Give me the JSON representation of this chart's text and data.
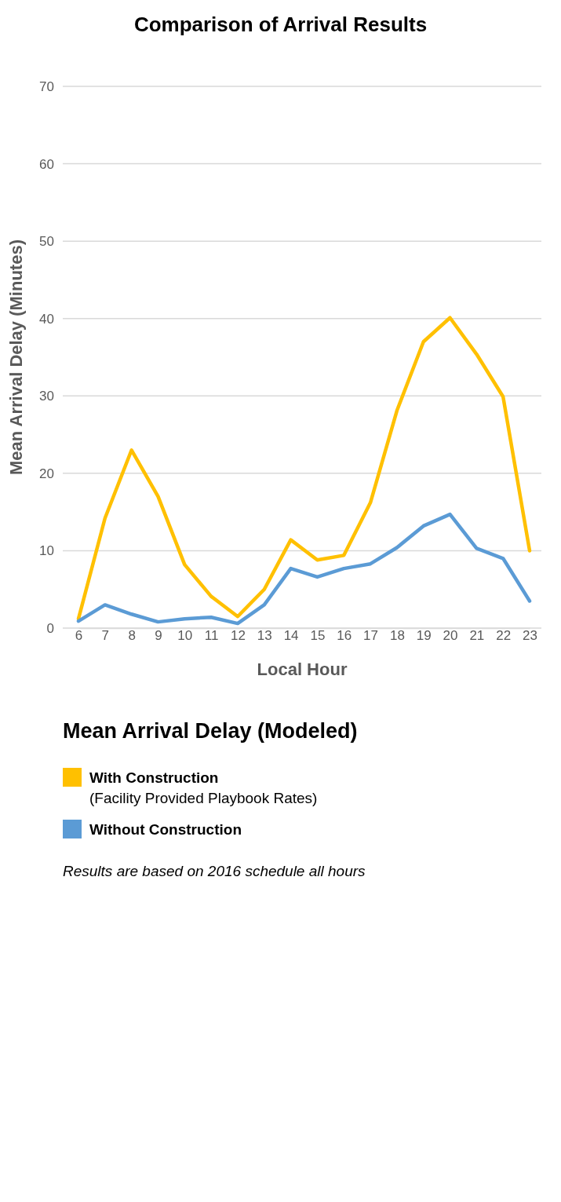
{
  "chart_data": {
    "type": "line",
    "title": "Comparison of Arrival Results",
    "xlabel": "Local Hour",
    "ylabel": "Mean Arrival Delay (Minutes)",
    "legend_title": "Mean Arrival Delay (Modeled)",
    "categories": [
      "6",
      "7",
      "8",
      "9",
      "10",
      "11",
      "12",
      "13",
      "14",
      "15",
      "16",
      "17",
      "18",
      "19",
      "20",
      "21",
      "22",
      "23"
    ],
    "series": [
      {
        "name": "With Construction (Facility Provided Playbook Rates)",
        "color": "#ffc000",
        "values": [
          1.2,
          14.2,
          23,
          17,
          8.2,
          4.1,
          1.5,
          5,
          11.4,
          8.8,
          9.4,
          16.2,
          28.1,
          37,
          40.1,
          35.4,
          29.9,
          10
        ]
      },
      {
        "name": "Without Construction",
        "color": "#5b9bd5",
        "values": [
          0.9,
          3,
          1.8,
          0.8,
          1.2,
          1.4,
          0.6,
          3,
          7.7,
          6.6,
          7.7,
          8.3,
          10.4,
          13.2,
          14.7,
          10.3,
          9,
          3.5
        ]
      }
    ],
    "ylim": [
      0,
      70
    ],
    "yticks": [
      0,
      10,
      20,
      30,
      40,
      50,
      60,
      70
    ],
    "grid": "y",
    "legend": "bottom",
    "marker": "none",
    "line_style": "solid",
    "annotations": [
      "Results are based on 2016 schedule all hours"
    ]
  }
}
